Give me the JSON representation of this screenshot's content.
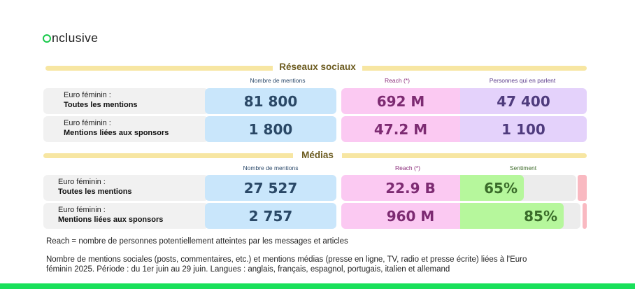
{
  "brand": {
    "logo_text": "nclusive",
    "logo_color": "#19c94b"
  },
  "colors": {
    "mentions_bg": "#c9e6fb",
    "reach_bg": "#fbc9f2",
    "people_bg": "#e4d2fb",
    "sentiment_positive": "#b6f79c",
    "sentiment_negative": "#f9b9c1",
    "section_bar": "#f7e6a2"
  },
  "chart_data": [
    {
      "type": "table",
      "title": "Réseaux sociaux",
      "columns": [
        "Nombre de mentions",
        "Reach (*)",
        "Personnes qui en parlent"
      ],
      "rows": [
        {
          "label_line1": "Euro féminin :",
          "label_line2": "Toutes les mentions",
          "mentions": "81 800",
          "reach": "692 M",
          "people": "47 400"
        },
        {
          "label_line1": "Euro féminin :",
          "label_line2": "Mentions liées aux sponsors",
          "mentions": "1 800",
          "reach": "47.2 M",
          "people": "1 100"
        }
      ]
    },
    {
      "type": "table",
      "title": "Médias",
      "columns": [
        "Nombre de mentions",
        "Reach (*)",
        "Sentiment"
      ],
      "rows": [
        {
          "label_line1": "Euro féminin :",
          "label_line2": "Toutes les mentions",
          "mentions": "27 527",
          "reach": "22.9 B",
          "sentiment": "65%",
          "sentiment_value": 0.65
        },
        {
          "label_line1": "Euro féminin :",
          "label_line2": "Mentions liées aux sponsors",
          "mentions": "2 757",
          "reach": "960 M",
          "sentiment": "85%",
          "sentiment_value": 0.85
        }
      ]
    }
  ],
  "notes": {
    "reach_definition": "Reach = nombre de personnes potentiellement atteintes par les messages et articles",
    "scope_line1": "Nombre de mentions sociales (posts, commentaires, etc.) et mentions médias (presse en ligne, TV, radio et presse écrite) liées à l'Euro",
    "scope_line2": "féminin 2025. Période : du 1er juin au 29 juin. Langues : anglais, français, espagnol, portugais, italien et allemand"
  }
}
